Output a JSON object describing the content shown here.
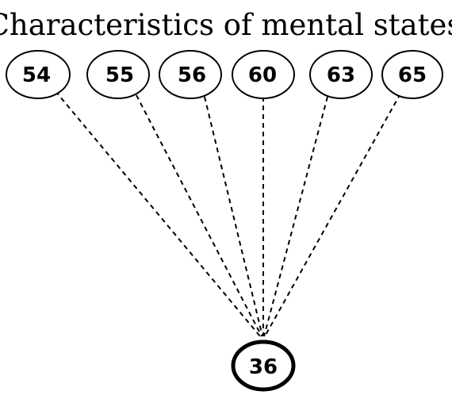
{
  "title": "Characteristics of mental states",
  "nodes": {
    "source": [
      "54",
      "55",
      "56",
      "60",
      "63",
      "65"
    ],
    "target": "36"
  },
  "edges": [
    {
      "from": "54",
      "to": "36",
      "style": "dashed"
    },
    {
      "from": "55",
      "to": "36",
      "style": "dashed"
    },
    {
      "from": "56",
      "to": "36",
      "style": "dashed"
    },
    {
      "from": "60",
      "to": "36",
      "style": "dashed"
    },
    {
      "from": "63",
      "to": "36",
      "style": "dashed"
    },
    {
      "from": "65",
      "to": "36",
      "style": "dashed"
    }
  ]
}
